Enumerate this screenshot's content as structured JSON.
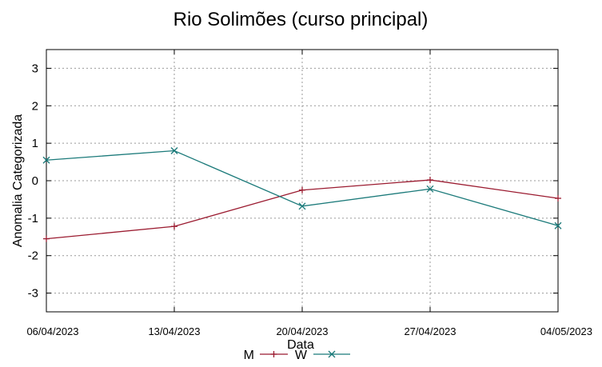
{
  "chart_data": {
    "type": "line",
    "title": "Rio Solimões (curso principal)",
    "xlabel": "Data",
    "ylabel": "Anomalia Categorizada",
    "categories": [
      "06/04/2023",
      "13/04/2023",
      "20/04/2023",
      "27/04/2023",
      "04/05/2023"
    ],
    "yticks": [
      3,
      2,
      1,
      0,
      -1,
      -2,
      -3
    ],
    "ylim": [
      -3.5,
      3.5
    ],
    "grid": true,
    "legend": "bottom-center",
    "series": [
      {
        "name": "M",
        "color": "#9b1b30",
        "marker": "plus",
        "values": [
          -1.55,
          -1.22,
          -0.25,
          0.02,
          -0.47
        ]
      },
      {
        "name": "W",
        "color": "#1b7a7a",
        "marker": "cross",
        "values": [
          0.55,
          0.8,
          -0.68,
          -0.22,
          -1.2
        ]
      }
    ]
  }
}
